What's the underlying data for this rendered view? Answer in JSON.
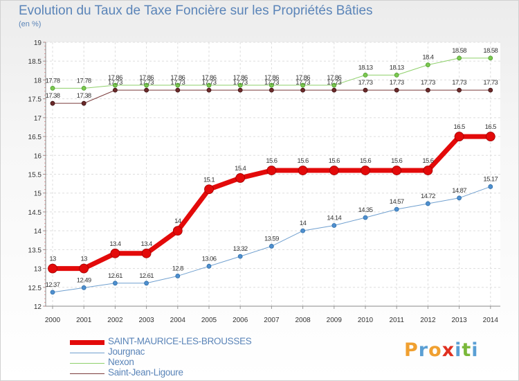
{
  "title": "Evolution du Taux de Taxe Foncière sur les Propriétés Bâties",
  "unit": "(en %)",
  "chart_data": {
    "type": "line",
    "x": [
      2000,
      2001,
      2002,
      2003,
      2004,
      2005,
      2006,
      2007,
      2008,
      2009,
      2010,
      2011,
      2012,
      2013,
      2014
    ],
    "ylim": [
      12,
      19
    ],
    "yticks": [
      12,
      12.5,
      13,
      13.5,
      14,
      14.5,
      15,
      15.5,
      16,
      16.5,
      17,
      17.5,
      18,
      18.5,
      19
    ],
    "grid": true,
    "series": [
      {
        "name": "SAINT-MAURICE-LES-BROUSSES",
        "color": "#e30a0a",
        "values": [
          13,
          13,
          13.4,
          13.4,
          14,
          15.1,
          15.4,
          15.6,
          15.6,
          15.6,
          15.6,
          15.6,
          15.6,
          16.5,
          16.5
        ],
        "labels": [
          "13",
          "13",
          "13.4",
          "13.4",
          "14",
          "15.1",
          "15.4",
          "15.6",
          "15.6",
          "15.6",
          "15.6",
          "15.6",
          "15.6",
          "16.5",
          "16.5"
        ]
      },
      {
        "name": "Jourgnac",
        "color": "#6f9fcf",
        "values": [
          12.37,
          12.49,
          12.61,
          12.61,
          12.8,
          13.06,
          13.32,
          13.59,
          14,
          14.14,
          14.35,
          14.57,
          14.72,
          14.87,
          15.17
        ],
        "labels": [
          "12.37",
          "12.49",
          "12.61",
          "12.61",
          "12.8",
          "13.06",
          "13.32",
          "13.59",
          "14",
          "14.14",
          "14.35",
          "14.57",
          "14.72",
          "14.87",
          "15.17"
        ]
      },
      {
        "name": "Nexon",
        "color": "#8ed06a",
        "values": [
          17.78,
          17.78,
          17.86,
          17.86,
          17.86,
          17.86,
          17.86,
          17.86,
          17.86,
          17.86,
          18.13,
          18.13,
          18.4,
          18.58,
          18.58
        ],
        "labels": [
          "17.78",
          "17.78",
          "17.86",
          "17.86",
          "17.86",
          "17.86",
          "17.86",
          "17.86",
          "17.86",
          "17.86",
          "18.13",
          "18.13",
          "18.4",
          "18.58",
          "18.58"
        ]
      },
      {
        "name": "Saint-Jean-Ligoure",
        "color": "#7a3b3b",
        "values": [
          17.38,
          17.38,
          17.73,
          17.73,
          17.73,
          17.73,
          17.73,
          17.73,
          17.73,
          17.73,
          17.73,
          17.73,
          17.73,
          17.73,
          17.73
        ],
        "labels": [
          "17.38",
          "17.38",
          "17.73",
          "17.73",
          "17.73",
          "17.73",
          "17.73",
          "17.73",
          "17.73",
          "17.73",
          "17.73",
          "17.73",
          "17.73",
          "17.73",
          "17.73"
        ]
      }
    ],
    "legend_position": "bottom-left"
  },
  "logo": {
    "letters": [
      "P",
      "r",
      "o",
      "x",
      "i",
      "t",
      "i"
    ],
    "colors": [
      "#f0a030",
      "#5a9fd4",
      "#f0a030",
      "#e03020",
      "#5a9fd4",
      "#7ab83a",
      "#5a9fd4"
    ]
  }
}
